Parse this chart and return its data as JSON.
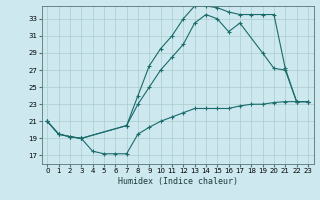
{
  "bg_color": "#cde8ee",
  "grid_color": "#aacccc",
  "line_color": "#1a6b6b",
  "xlabel": "Humidex (Indice chaleur)",
  "xlim": [
    -0.5,
    23.5
  ],
  "ylim": [
    16.0,
    34.5
  ],
  "yticks": [
    17,
    19,
    21,
    23,
    25,
    27,
    29,
    31,
    33
  ],
  "xticks": [
    0,
    1,
    2,
    3,
    4,
    5,
    6,
    7,
    8,
    9,
    10,
    11,
    12,
    13,
    14,
    15,
    16,
    17,
    18,
    19,
    20,
    21,
    22,
    23
  ],
  "curve1_x": [
    0,
    1,
    2,
    3,
    4,
    5,
    6,
    7,
    8,
    9,
    10,
    11,
    12,
    13,
    14,
    15,
    16,
    17,
    18,
    19,
    20,
    21,
    22,
    23
  ],
  "curve1_y": [
    21.0,
    19.5,
    19.2,
    19.0,
    17.5,
    17.2,
    17.2,
    17.2,
    19.5,
    20.3,
    21.0,
    21.5,
    22.0,
    22.5,
    22.5,
    22.5,
    22.5,
    22.8,
    23.0,
    23.0,
    23.2,
    23.3,
    23.3,
    23.3
  ],
  "curve2_x": [
    0,
    1,
    2,
    3,
    7,
    8,
    9,
    10,
    11,
    12,
    13,
    14,
    15,
    16,
    17,
    19,
    20,
    21,
    22,
    23
  ],
  "curve2_y": [
    21.0,
    19.5,
    19.2,
    19.0,
    20.5,
    23.0,
    25.0,
    27.0,
    28.5,
    30.0,
    32.5,
    33.5,
    33.0,
    31.5,
    32.5,
    29.0,
    27.2,
    27.0,
    23.3,
    23.3
  ],
  "curve3_x": [
    0,
    1,
    2,
    3,
    7,
    8,
    9,
    10,
    11,
    12,
    13,
    14,
    15,
    16,
    17,
    18,
    19,
    20,
    21,
    22,
    23
  ],
  "curve3_y": [
    21.0,
    19.5,
    19.2,
    19.0,
    20.5,
    24.0,
    27.5,
    29.5,
    31.0,
    33.0,
    34.5,
    34.5,
    34.3,
    33.8,
    33.5,
    33.5,
    33.5,
    33.5,
    27.2,
    23.3,
    23.3
  ]
}
